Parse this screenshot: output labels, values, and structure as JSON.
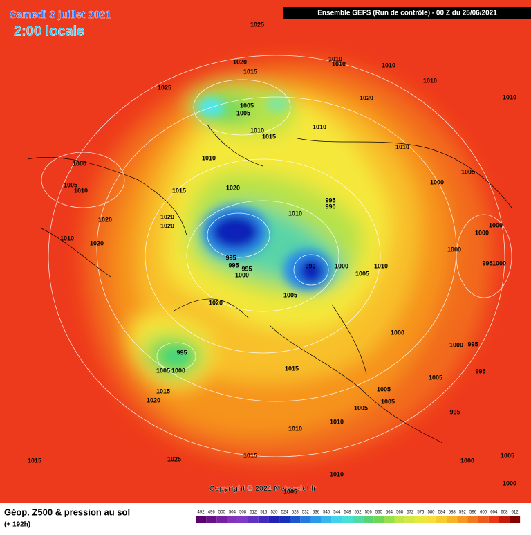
{
  "header": {
    "date": "Samedi 3 juillet 2021",
    "time": "2:00 locale",
    "run": "Ensemble GEFS  (Run de contrôle)  -  00 Z du 25/06/2021"
  },
  "copyright": "Copyright © 2021 Meteociel.fr",
  "footer": {
    "title": "Géop. Z500 & pression au sol",
    "lead": "(+ 192h)"
  },
  "colorbar": {
    "ticks": [
      492,
      496,
      500,
      504,
      508,
      512,
      516,
      520,
      524,
      528,
      532,
      536,
      540,
      544,
      548,
      552,
      556,
      560,
      564,
      568,
      572,
      576,
      580,
      584,
      588,
      592,
      596,
      600,
      604,
      608,
      612
    ]
  },
  "isobar_labels": [
    1025,
    1020,
    1015,
    1025,
    1010,
    1010,
    1010,
    1010,
    1010,
    1005,
    1005,
    1020,
    1010,
    1015,
    1010,
    1010,
    1010,
    1000,
    1005,
    1000,
    1005,
    1010,
    1015,
    1020,
    995,
    990,
    1010,
    1020,
    1020,
    1020,
    1000,
    1010,
    1020,
    1000,
    1000,
    995,
    995,
    995,
    1000,
    990,
    1000,
    1010,
    1005,
    995,
    1000,
    1005,
    1020,
    1000,
    1000,
    995,
    995,
    1005,
    1000,
    1015,
    1005,
    995,
    1005,
    1015,
    1020,
    1005,
    1005,
    995,
    1010,
    1010,
    1015,
    1025,
    1015,
    1000,
    1005,
    1010,
    1005,
    1000
  ]
}
